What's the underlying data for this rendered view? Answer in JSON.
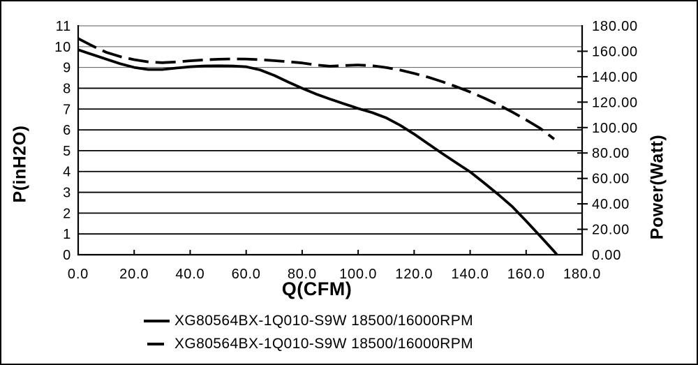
{
  "chart": {
    "x_axis_title": "Q(CFM)",
    "y_left_axis_title": "P(inH2O)",
    "y_right_axis_title": "Power(Watt)"
  },
  "legend": {
    "items": [
      {
        "label": "XG80564BX-1Q010-S9W 18500/16000RPM",
        "line_style": "solid"
      },
      {
        "label": "XG80564BX-1Q010-S9W 18500/16000RPM",
        "line_style": "dashed"
      }
    ]
  },
  "chart_data": {
    "type": "line",
    "title": "",
    "xlabel": "Q(CFM)",
    "ylabel_left": "P(inH2O)",
    "ylabel_right": "Power(Watt)",
    "xlim": [
      0,
      180
    ],
    "ylim_left": [
      0,
      11
    ],
    "ylim_right": [
      0,
      180
    ],
    "x_tick_values": [
      0,
      20,
      40,
      60,
      80,
      100,
      120,
      140,
      160,
      180
    ],
    "x_tick_labels": [
      "0.0",
      "20.0",
      "40.0",
      "60.0",
      "80.0",
      "100.0",
      "120.0",
      "140.0",
      "160.0",
      "180.0"
    ],
    "y_left_tick_values": [
      0,
      1,
      2,
      3,
      4,
      5,
      6,
      7,
      8,
      9,
      10,
      11
    ],
    "y_left_tick_labels": [
      "0",
      "1",
      "2",
      "3",
      "4",
      "5",
      "6",
      "7",
      "8",
      "9",
      "10",
      "11"
    ],
    "y_right_tick_values": [
      0,
      20,
      40,
      60,
      80,
      100,
      120,
      140,
      160,
      180
    ],
    "y_right_tick_labels": [
      "0.00",
      "20.00",
      "40.00",
      "60.00",
      "80.00",
      "100.00",
      "120.00",
      "140.00",
      "160.00",
      "180.00"
    ],
    "grid": "horizontal",
    "legend_position": "bottom",
    "line_color": "#000000",
    "series": [
      {
        "name": "XG80564BX-1Q010-S9W 18500/16000RPM",
        "axis": "left",
        "line_style": "solid",
        "points": [
          [
            0,
            9.85
          ],
          [
            5,
            9.62
          ],
          [
            10,
            9.4
          ],
          [
            15,
            9.18
          ],
          [
            20,
            9.0
          ],
          [
            25,
            8.9
          ],
          [
            30,
            8.9
          ],
          [
            35,
            8.97
          ],
          [
            40,
            9.03
          ],
          [
            45,
            9.07
          ],
          [
            50,
            9.08
          ],
          [
            55,
            9.07
          ],
          [
            60,
            9.03
          ],
          [
            65,
            8.88
          ],
          [
            70,
            8.62
          ],
          [
            75,
            8.3
          ],
          [
            80,
            8.0
          ],
          [
            85,
            7.72
          ],
          [
            90,
            7.48
          ],
          [
            95,
            7.25
          ],
          [
            100,
            7.03
          ],
          [
            105,
            6.83
          ],
          [
            110,
            6.58
          ],
          [
            115,
            6.22
          ],
          [
            120,
            5.8
          ],
          [
            125,
            5.33
          ],
          [
            130,
            4.87
          ],
          [
            135,
            4.42
          ],
          [
            140,
            3.98
          ],
          [
            145,
            3.45
          ],
          [
            150,
            2.9
          ],
          [
            155,
            2.32
          ],
          [
            160,
            1.62
          ],
          [
            165,
            0.9
          ],
          [
            170,
            0.16
          ],
          [
            171,
            0
          ]
        ]
      },
      {
        "name": "XG80564BX-1Q010-S9W 18500/16000RPM",
        "axis": "right",
        "line_style": "dashed",
        "points": [
          [
            0,
            170
          ],
          [
            5,
            164.3
          ],
          [
            10,
            159.2
          ],
          [
            15,
            155.8
          ],
          [
            20,
            153.4
          ],
          [
            25,
            151.7
          ],
          [
            30,
            151
          ],
          [
            35,
            151.6
          ],
          [
            40,
            152.5
          ],
          [
            45,
            153.2
          ],
          [
            50,
            153.7
          ],
          [
            55,
            154
          ],
          [
            60,
            153.9
          ],
          [
            65,
            153.4
          ],
          [
            70,
            152.6
          ],
          [
            75,
            151.8
          ],
          [
            80,
            150.8
          ],
          [
            85,
            149.2
          ],
          [
            90,
            148.2
          ],
          [
            95,
            148.8
          ],
          [
            100,
            149.2
          ],
          [
            105,
            148.6
          ],
          [
            110,
            147.2
          ],
          [
            115,
            145.2
          ],
          [
            120,
            142.6
          ],
          [
            125,
            139.6
          ],
          [
            130,
            136.1
          ],
          [
            135,
            132.2
          ],
          [
            140,
            128
          ],
          [
            145,
            123.2
          ],
          [
            150,
            118
          ],
          [
            155,
            112.3
          ],
          [
            160,
            106
          ],
          [
            165,
            99.5
          ],
          [
            170,
            91
          ]
        ]
      }
    ]
  }
}
